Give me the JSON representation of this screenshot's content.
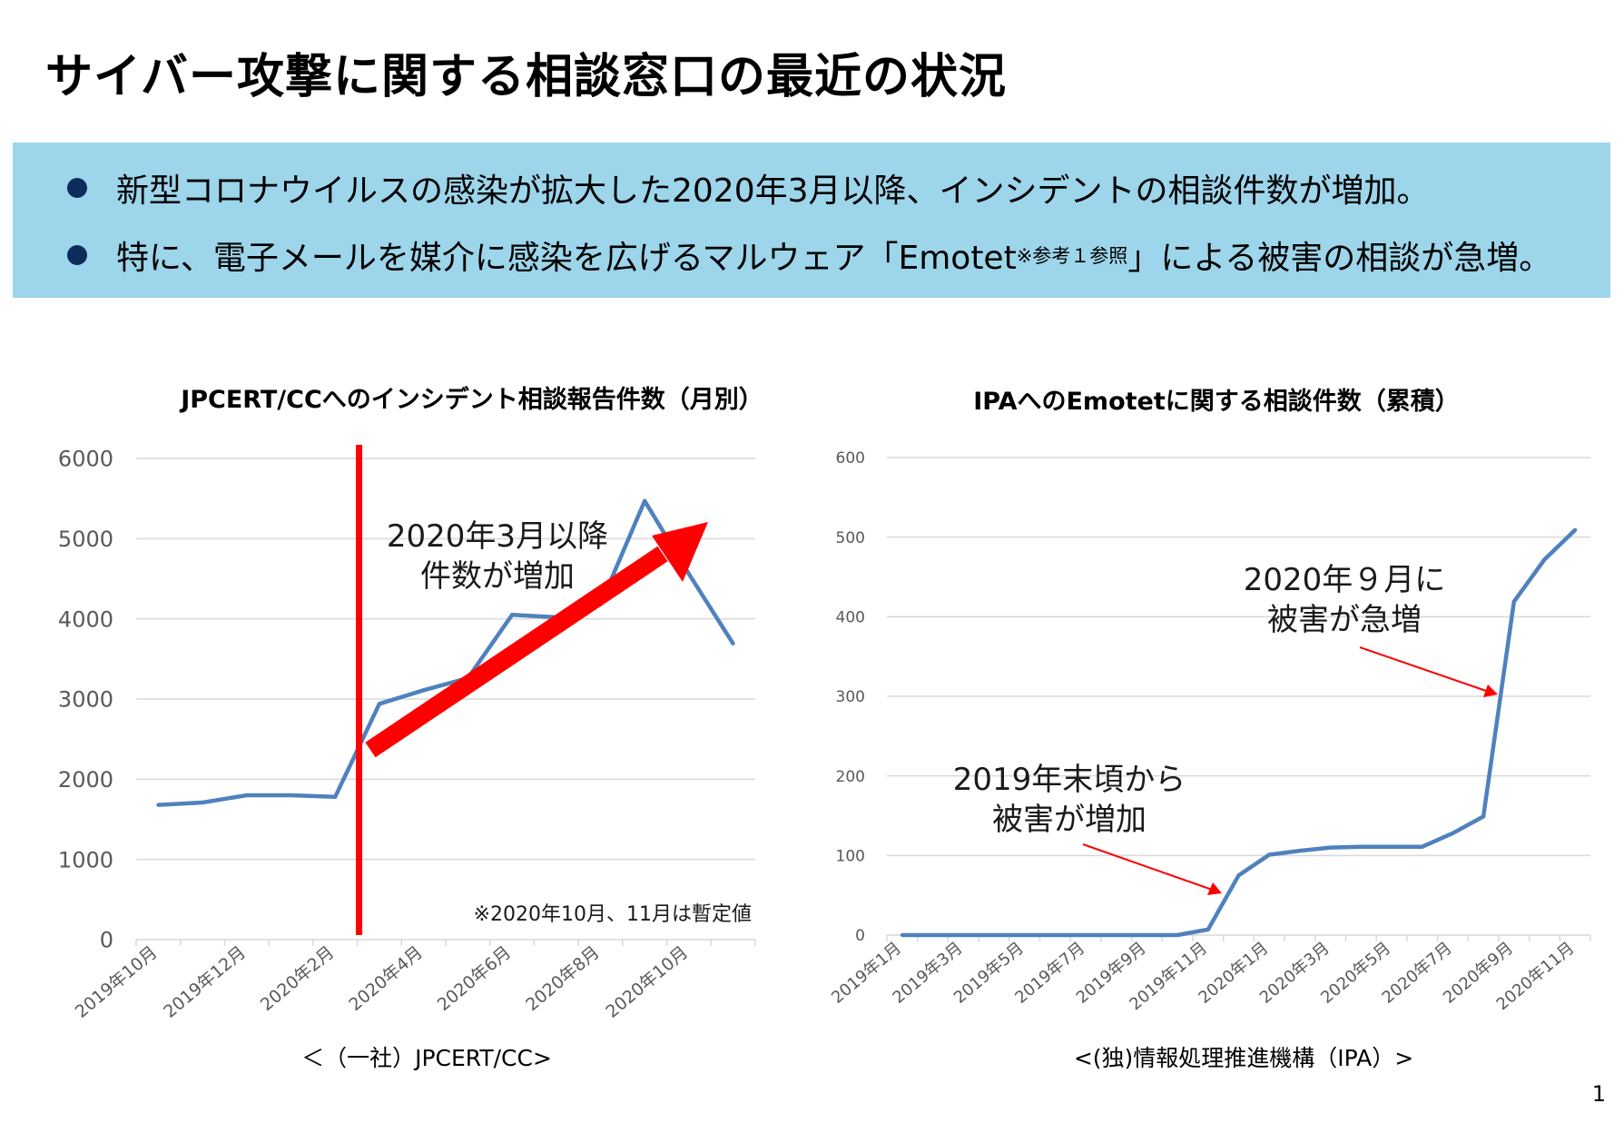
{
  "title": "サイバー攻撃に関する相談窓口の最近の状況",
  "bullets": [
    {
      "text": "新型コロナウイルスの感染が拡大した2020年3月以降、インシデントの相談件数が増加。"
    },
    {
      "text_before": "特に、電子メールを媒介に感染を広げるマルウェア「Emotet",
      "text_ref": "※参考１参照",
      "text_after": "」による被害の相談が急増。"
    }
  ],
  "colors": {
    "banner": "#9dd5ea",
    "line": "#4f81bd",
    "highlight": "#ff0000",
    "bullet": "#0c2d5c"
  },
  "page_number": "1",
  "chart_data": [
    {
      "type": "line",
      "title": "JPCERT/CCへのインシデント相談報告件数（月別）",
      "source": "＜（一社）JPCERT/CC>",
      "x": [
        "2019年10月",
        "2019年11月",
        "2019年12月",
        "2020年1月",
        "2020年2月",
        "2020年3月",
        "2020年4月",
        "2020年5月",
        "2020年6月",
        "2020年7月",
        "2020年8月",
        "2020年9月",
        "2020年10月",
        "2020年11月"
      ],
      "tick_labels": [
        "2019年10月",
        "2019年12月",
        "2020年2月",
        "2020年4月",
        "2020年6月",
        "2020年8月",
        "2020年10月"
      ],
      "series": [
        {
          "values": [
            1680,
            1710,
            1800,
            1800,
            1780,
            2940,
            3110,
            3260,
            4050,
            4020,
            4180,
            5470,
            4560,
            3690
          ]
        }
      ],
      "ylim": [
        0,
        6000
      ],
      "yticks": [
        0,
        1000,
        2000,
        3000,
        4000,
        5000,
        6000
      ],
      "grid": true,
      "annotations": {
        "marker_label": "2020年3月以降\n件数が増加",
        "note": "※2020年10月、11月は暫定値"
      }
    },
    {
      "type": "line",
      "title": "IPAへのEmotetに関する相談件数（累積）",
      "source": "<(独)情報処理推進機構（IPA）>",
      "x": [
        "2019年1月",
        "2019年2月",
        "2019年3月",
        "2019年4月",
        "2019年5月",
        "2019年6月",
        "2019年7月",
        "2019年8月",
        "2019年9月",
        "2019年10月",
        "2019年11月",
        "2019年12月",
        "2020年1月",
        "2020年2月",
        "2020年3月",
        "2020年4月",
        "2020年5月",
        "2020年6月",
        "2020年7月",
        "2020年8月",
        "2020年9月",
        "2020年10月",
        "2020年11月"
      ],
      "tick_labels": [
        "2019年1月",
        "2019年3月",
        "2019年5月",
        "2019年7月",
        "2019年9月",
        "2019年11月",
        "2020年1月",
        "2020年3月",
        "2020年5月",
        "2020年7月",
        "2020年9月",
        "2020年11月"
      ],
      "series": [
        {
          "values": [
            0,
            0,
            0,
            0,
            0,
            0,
            0,
            0,
            0,
            0,
            7,
            75,
            101,
            106,
            110,
            111,
            111,
            111,
            128,
            149,
            419,
            472,
            509
          ]
        }
      ],
      "ylim": [
        0,
        600
      ],
      "yticks": [
        0,
        100,
        200,
        300,
        400,
        500,
        600
      ],
      "grid": true,
      "annotations": {
        "callout_1": "2019年末頃から\n被害が増加",
        "callout_2": "2020年９月に\n被害が急増"
      }
    }
  ]
}
